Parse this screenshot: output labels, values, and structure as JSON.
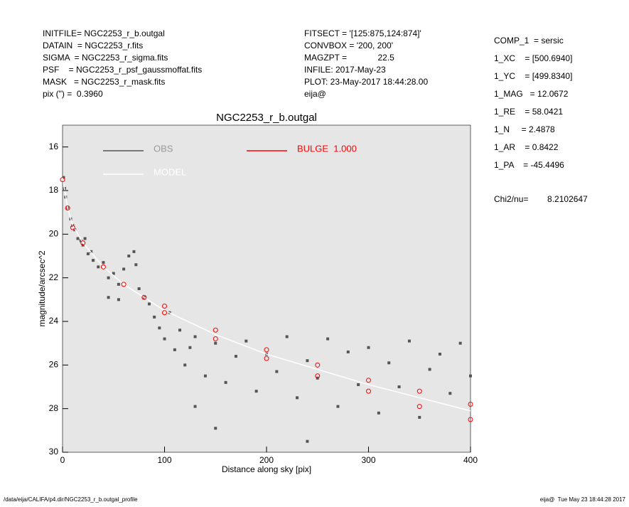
{
  "header": {
    "left": [
      "INITFILE= NGC2253_r_b.outgal",
      "DATAIN  = NGC2253_r.fits",
      "SIGMA  = NGC2253_r_sigma.fits",
      "PSF    = NGC2253_r_psf_gaussmoffat.fits",
      "MASK   = NGC2253_r_mask.fits",
      "pix (\") =  0.3960"
    ],
    "middle": [
      "FITSECT = '[125:875,124:874]'",
      "CONVBOX = '200, 200'",
      "MAGZPT =             22.5",
      "INFILE: 2017-May-23",
      "PLOT: 23-May-2017 18:44:28.00",
      "eija@"
    ],
    "right": [
      "COMP_1  = sersic",
      "1_XC    = [500.6940]",
      "1_YC    = [499.8340]",
      "1_MAG   = 12.0672",
      "1_RE    = 58.0421",
      "1_N     = 2.4878",
      "1_AR    = 0.8422",
      "1_PA    = -45.4496"
    ],
    "chi2": "Chi2/nu=        8.2102647"
  },
  "footer": {
    "path": "/data/eija/CALIFA/p4.dir/NGC2253_r_b.outgal_profile",
    "stamp": "eija@  Tue May 23 18:44:28 2017"
  },
  "chart_data": {
    "type": "scatter",
    "title": "NGC2253_r_b.outgal",
    "x_label": "Distance along sky [pix]",
    "y_label": "magnitude/arcsec^2",
    "xlim": [
      0,
      400
    ],
    "xticks": [
      0,
      100,
      200,
      300,
      400
    ],
    "ylim": [
      30,
      15
    ],
    "yticks": [
      16,
      18,
      20,
      22,
      24,
      26,
      28,
      30
    ],
    "background": "#e6e6e6",
    "series": [
      {
        "name": "OBS",
        "color": "#555555",
        "marker": "square",
        "x": [
          1,
          2,
          3,
          5,
          8,
          10,
          12,
          15,
          18,
          20,
          22,
          25,
          28,
          30,
          35,
          40,
          45,
          50,
          55,
          60,
          65,
          70,
          72,
          75,
          80,
          85,
          90,
          95,
          100,
          105,
          110,
          115,
          120,
          125,
          130,
          140,
          150,
          160,
          170,
          180,
          190,
          200,
          210,
          220,
          230,
          240,
          250,
          260,
          270,
          280,
          290,
          300,
          310,
          320,
          330,
          340,
          350,
          360,
          370,
          380,
          390,
          400,
          55,
          130,
          45,
          240,
          150
        ],
        "values": [
          17.4,
          17.9,
          18.3,
          18.8,
          19.3,
          19.6,
          19.8,
          20.2,
          20.3,
          20.5,
          20.2,
          20.9,
          20.8,
          21.2,
          21.5,
          21.3,
          22.0,
          21.8,
          22.3,
          21.6,
          21.0,
          20.8,
          21.4,
          22.5,
          22.9,
          23.2,
          23.8,
          24.3,
          24.8,
          23.6,
          25.3,
          24.4,
          26.0,
          25.2,
          24.7,
          26.5,
          25.0,
          26.8,
          25.6,
          24.9,
          27.2,
          25.5,
          26.3,
          24.7,
          27.5,
          25.8,
          26.6,
          24.8,
          27.9,
          25.4,
          26.9,
          25.2,
          28.2,
          25.9,
          27.0,
          24.9,
          28.4,
          26.2,
          25.5,
          27.3,
          25.0,
          26.5,
          23.0,
          27.9,
          22.9,
          29.5,
          28.9
        ]
      },
      {
        "name": "MODEL",
        "color": "#ffffff",
        "marker": "line",
        "x": [
          0,
          5,
          10,
          20,
          40,
          60,
          80,
          100,
          150,
          200,
          250,
          300,
          350,
          400
        ],
        "values": [
          17.4,
          18.8,
          19.6,
          20.4,
          21.5,
          22.3,
          22.9,
          23.5,
          24.6,
          25.5,
          26.2,
          26.9,
          27.5,
          28.1
        ]
      },
      {
        "name": "BULGE  1.000",
        "color": "#ff0000",
        "marker": "circle",
        "x": [
          0,
          5,
          10,
          20,
          40,
          60,
          80,
          100,
          100,
          150,
          150,
          200,
          200,
          250,
          250,
          300,
          300,
          350,
          350,
          400,
          400
        ],
        "values": [
          17.5,
          18.8,
          19.7,
          20.4,
          21.5,
          22.3,
          22.9,
          23.3,
          23.6,
          24.4,
          24.8,
          25.3,
          25.7,
          26.0,
          26.5,
          26.7,
          27.2,
          27.2,
          27.9,
          27.8,
          28.5
        ]
      }
    ]
  }
}
